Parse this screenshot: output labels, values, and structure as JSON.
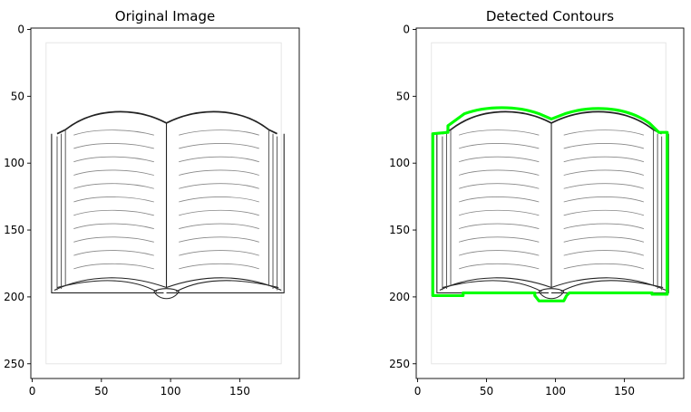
{
  "chart_data": [
    {
      "type": "image",
      "title": "Original Image",
      "xlim": [
        -1,
        193
      ],
      "ylim": [
        261,
        -1
      ],
      "x_ticks": [
        0,
        50,
        100,
        150
      ],
      "y_ticks": [
        0,
        50,
        100,
        150,
        200,
        250
      ],
      "contour_overlay": false,
      "contour_color": ""
    },
    {
      "type": "image",
      "title": "Detected Contours",
      "xlim": [
        -1,
        193
      ],
      "ylim": [
        261,
        -1
      ],
      "x_ticks": [
        0,
        50,
        100,
        150
      ],
      "y_ticks": [
        0,
        50,
        100,
        150,
        200,
        250
      ],
      "contour_overlay": true,
      "contour_color": "#00ff00"
    }
  ]
}
